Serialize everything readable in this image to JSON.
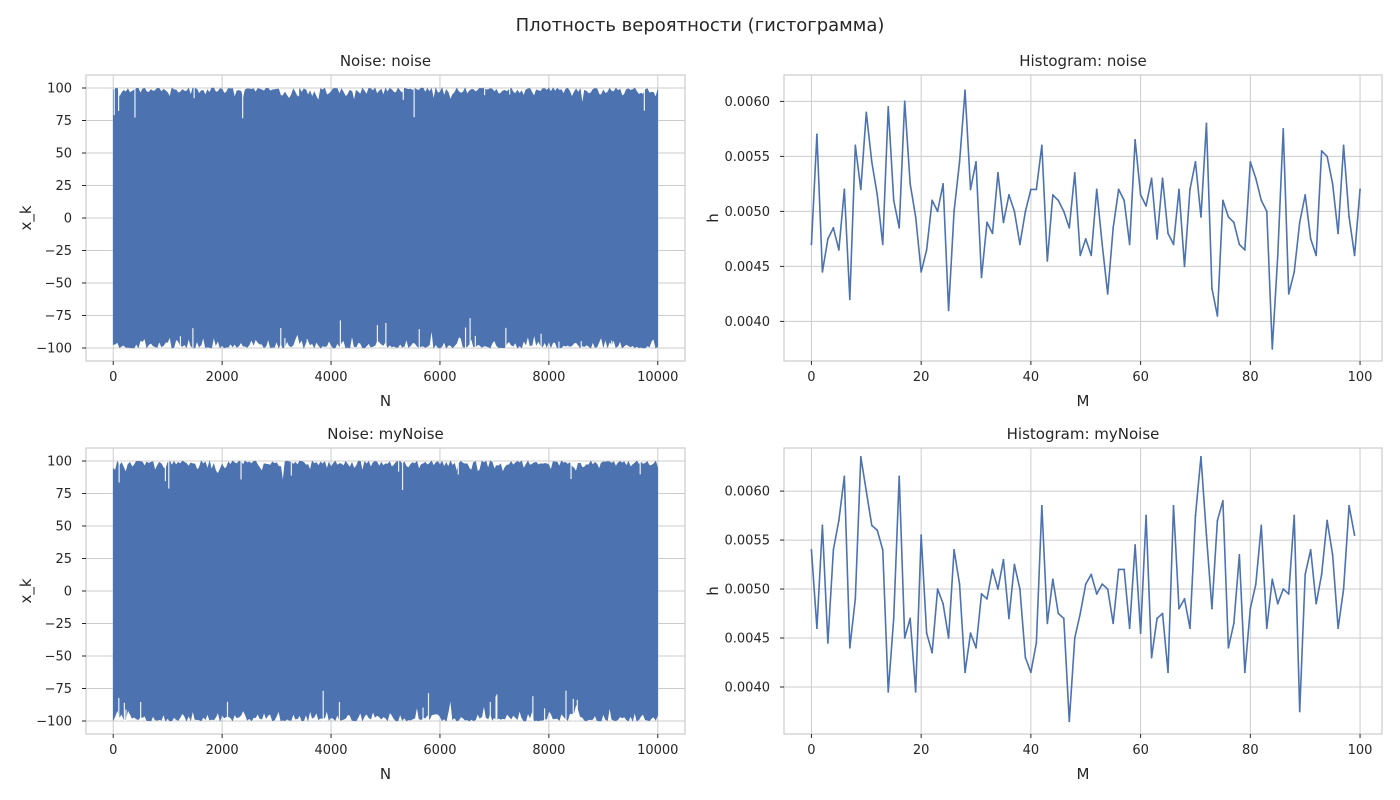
{
  "figure": {
    "suptitle": "Плотность вероятности (гистограмма)",
    "background": "#ffffff",
    "grid_color": "#cccccc",
    "line_color": "#4c72b0"
  },
  "chart_data": [
    {
      "type": "area",
      "title": "Noise: noise",
      "xlabel": "N",
      "ylabel": "x_k",
      "xlim": [
        -500,
        10500
      ],
      "ylim": [
        -110,
        110
      ],
      "xticks": [
        0,
        2000,
        4000,
        6000,
        8000,
        10000
      ],
      "xtick_labels": [
        "0",
        "2000",
        "4000",
        "6000",
        "8000",
        "10000"
      ],
      "yticks": [
        100,
        75,
        50,
        25,
        0,
        -25,
        -50,
        -75,
        -100
      ],
      "ytick_labels": [
        "100",
        "75",
        "50",
        "25",
        "0",
        "−25",
        "−50",
        "−75",
        "−100"
      ],
      "grid": true,
      "series": [
        {
          "color": "#4c72b0",
          "x_range": [
            0,
            10000
          ],
          "y_range": [
            -100,
            100
          ],
          "description": "dense uniform noise, 10000 samples"
        }
      ]
    },
    {
      "type": "line",
      "title": "Histogram: noise",
      "xlabel": "M",
      "ylabel": "h",
      "xlim": [
        -5,
        104
      ],
      "ylim": [
        0.00364,
        0.00624
      ],
      "xticks": [
        0,
        20,
        40,
        60,
        80,
        100
      ],
      "xtick_labels": [
        "0",
        "20",
        "40",
        "60",
        "80",
        "100"
      ],
      "yticks": [
        0.004,
        0.0045,
        0.005,
        0.0055,
        0.006
      ],
      "ytick_labels": [
        "0.0040",
        "0.0045",
        "0.0050",
        "0.0055",
        "0.0060"
      ],
      "grid": true,
      "series": [
        {
          "color": "#4c72b0",
          "x_start": 0,
          "values": [
            0.0047,
            0.0057,
            0.00445,
            0.00475,
            0.00485,
            0.00465,
            0.0052,
            0.0042,
            0.0056,
            0.0052,
            0.0059,
            0.00545,
            0.00515,
            0.0047,
            0.00595,
            0.0051,
            0.00485,
            0.006,
            0.00525,
            0.00495,
            0.00445,
            0.00465,
            0.0051,
            0.005,
            0.00525,
            0.0041,
            0.005,
            0.00545,
            0.0061,
            0.0052,
            0.00545,
            0.0044,
            0.0049,
            0.0048,
            0.00535,
            0.0049,
            0.00515,
            0.005,
            0.0047,
            0.005,
            0.0052,
            0.0052,
            0.0056,
            0.00455,
            0.00515,
            0.0051,
            0.005,
            0.00485,
            0.00535,
            0.0046,
            0.00475,
            0.0046,
            0.0052,
            0.0047,
            0.00425,
            0.00485,
            0.0052,
            0.0051,
            0.0047,
            0.00565,
            0.00515,
            0.00505,
            0.0053,
            0.00475,
            0.0053,
            0.0048,
            0.0047,
            0.0052,
            0.0045,
            0.0052,
            0.00545,
            0.00495,
            0.0058,
            0.0043,
            0.00405,
            0.0051,
            0.00495,
            0.0049,
            0.0047,
            0.00465,
            0.00545,
            0.0053,
            0.0051,
            0.005,
            0.00375,
            0.0046,
            0.00575,
            0.00425,
            0.00445,
            0.0049,
            0.00515,
            0.00475,
            0.0046,
            0.00555,
            0.0055,
            0.00525,
            0.0048,
            0.0056,
            0.00495,
            0.0046,
            0.0052
          ]
        }
      ]
    },
    {
      "type": "area",
      "title": "Noise: myNoise",
      "xlabel": "N",
      "ylabel": "x_k",
      "xlim": [
        -500,
        10500
      ],
      "ylim": [
        -110,
        110
      ],
      "xticks": [
        0,
        2000,
        4000,
        6000,
        8000,
        10000
      ],
      "xtick_labels": [
        "0",
        "2000",
        "4000",
        "6000",
        "8000",
        "10000"
      ],
      "yticks": [
        100,
        75,
        50,
        25,
        0,
        -25,
        -50,
        -75,
        -100
      ],
      "ytick_labels": [
        "100",
        "75",
        "50",
        "25",
        "0",
        "−25",
        "−50",
        "−75",
        "−100"
      ],
      "grid": true,
      "series": [
        {
          "color": "#4c72b0",
          "x_range": [
            0,
            10000
          ],
          "y_range": [
            -100,
            100
          ],
          "description": "dense uniform noise, 10000 samples"
        }
      ]
    },
    {
      "type": "line",
      "title": "Histogram: myNoise",
      "xlabel": "M",
      "ylabel": "h",
      "xlim": [
        -5,
        104
      ],
      "ylim": [
        0.00352,
        0.00644
      ],
      "xticks": [
        0,
        20,
        40,
        60,
        80,
        100
      ],
      "xtick_labels": [
        "0",
        "20",
        "40",
        "60",
        "80",
        "100"
      ],
      "yticks": [
        0.004,
        0.0045,
        0.005,
        0.0055,
        0.006
      ],
      "ytick_labels": [
        "0.0040",
        "0.0045",
        "0.0050",
        "0.0055",
        "0.0060"
      ],
      "grid": true,
      "series": [
        {
          "color": "#4c72b0",
          "x_start": 0,
          "values": [
            0.0054,
            0.0046,
            0.00565,
            0.00445,
            0.0054,
            0.0057,
            0.00615,
            0.0044,
            0.0049,
            0.00635,
            0.006,
            0.00565,
            0.0056,
            0.0054,
            0.00395,
            0.0047,
            0.00615,
            0.0045,
            0.0047,
            0.00395,
            0.00555,
            0.00455,
            0.00435,
            0.005,
            0.00485,
            0.0045,
            0.0054,
            0.00505,
            0.00415,
            0.00455,
            0.0044,
            0.00495,
            0.0049,
            0.0052,
            0.005,
            0.0053,
            0.0047,
            0.00525,
            0.005,
            0.0043,
            0.00415,
            0.00445,
            0.00585,
            0.00465,
            0.0051,
            0.00475,
            0.0047,
            0.00365,
            0.0045,
            0.00475,
            0.00505,
            0.00515,
            0.00495,
            0.00505,
            0.005,
            0.00465,
            0.0052,
            0.0052,
            0.0046,
            0.00545,
            0.00455,
            0.00575,
            0.0043,
            0.0047,
            0.00475,
            0.00415,
            0.00585,
            0.0048,
            0.0049,
            0.0046,
            0.00575,
            0.00635,
            0.00555,
            0.0048,
            0.0057,
            0.0059,
            0.0044,
            0.00465,
            0.00535,
            0.00415,
            0.0048,
            0.00505,
            0.00565,
            0.0046,
            0.0051,
            0.00485,
            0.005,
            0.00495,
            0.00575,
            0.00375,
            0.00515,
            0.0054,
            0.00485,
            0.00515,
            0.0057,
            0.00535,
            0.0046,
            0.005,
            0.00585,
            0.00555
          ]
        }
      ]
    }
  ]
}
